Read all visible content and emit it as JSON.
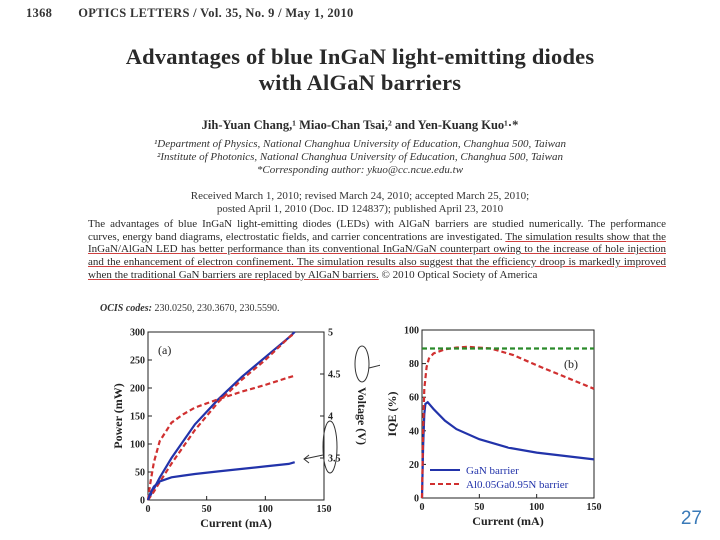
{
  "header": {
    "page_number": "1368",
    "journal": "OPTICS LETTERS / Vol. 35, No. 9 / May 1, 2010"
  },
  "title_line1": "Advantages of blue InGaN light-emitting diodes",
  "title_line2": "with AlGaN barriers",
  "authors": "Jih-Yuan Chang,¹ Miao-Chan Tsai,² and Yen-Kuang Kuo¹·*",
  "affiliations": [
    "¹Department of Physics, National Changhua University of Education, Changhua 500, Taiwan",
    "²Institute of Photonics, National Changhua University of Education, Changhua 500, Taiwan",
    "*Corresponding author: ykuo@cc.ncue.edu.tw"
  ],
  "dates_line1": "Received March 1, 2010; revised March 24, 2010; accepted March 25, 2010;",
  "dates_line2": "posted April 1, 2010 (Doc. ID 124837); published April 23, 2010",
  "abstract_part1": "The advantages of blue InGaN light-emitting diodes (LEDs) with AlGaN barriers are studied numerically. The performance curves, energy band diagrams, electrostatic fields, and carrier concentrations are investigated. ",
  "abstract_part2": "The simulation results show that the InGaN/AlGaN LED has better performance than its conventional InGaN/GaN counterpart owing to the increase of hole injection and the enhancement of electron confinement. The simulation results also suggest that the efficiency droop is markedly improved when the traditional GaN barriers are replaced by AlGaN barriers.",
  "abstract_part3": " © 2010 Optical Society of America",
  "ocis_label": "OCIS codes:",
  "ocis_values": "230.0250, 230.3670, 230.5590.",
  "slide_number": "27",
  "chart_data": [
    {
      "type": "line",
      "panel_label": "(a)",
      "xlabel": "Current (mA)",
      "ylabel": "Power (mW)",
      "y2label": "Voltage (V)",
      "xlim": [
        0,
        150
      ],
      "ylim": [
        0,
        300
      ],
      "y2lim": [
        3,
        5
      ],
      "xticks": [
        "0",
        "50",
        "100",
        "150"
      ],
      "yticks": [
        "0",
        "50",
        "100",
        "150",
        "200",
        "250",
        "300"
      ],
      "y2ticks": [
        "3.5",
        "4",
        "4.5",
        "5"
      ],
      "series": [
        {
          "style": "solid",
          "color": "#2233aa",
          "axis": "left",
          "x": [
            0,
            5,
            10,
            20,
            40,
            60,
            80,
            100,
            120,
            125
          ],
          "y": [
            0,
            20,
            40,
            75,
            135,
            180,
            220,
            255,
            290,
            300
          ]
        },
        {
          "style": "dashed",
          "color": "#d03030",
          "axis": "left",
          "x": [
            0,
            5,
            10,
            20,
            40,
            60,
            80,
            100,
            120,
            125
          ],
          "y": [
            0,
            15,
            32,
            65,
            125,
            175,
            215,
            250,
            290,
            298
          ]
        },
        {
          "style": "dashed",
          "color": "#d03030",
          "axis": "right",
          "x": [
            0,
            2,
            5,
            10,
            20,
            30,
            40,
            60,
            80,
            100,
            120,
            125
          ],
          "y": [
            3.0,
            3.2,
            3.45,
            3.7,
            3.92,
            4.02,
            4.1,
            4.2,
            4.29,
            4.37,
            4.46,
            4.48
          ]
        },
        {
          "style": "solid",
          "color": "#2233aa",
          "axis": "right",
          "x": [
            0,
            2,
            5,
            10,
            20,
            30,
            40,
            60,
            80,
            100,
            120,
            125
          ],
          "y": [
            3.0,
            3.08,
            3.16,
            3.22,
            3.27,
            3.29,
            3.31,
            3.34,
            3.37,
            3.4,
            3.43,
            3.45
          ]
        }
      ]
    },
    {
      "type": "line",
      "panel_label": "(b)",
      "xlabel": "Current (mA)",
      "ylabel": "IQE (%)",
      "xlim": [
        0,
        150
      ],
      "ylim": [
        0,
        100
      ],
      "xticks": [
        "0",
        "50",
        "100",
        "150"
      ],
      "yticks": [
        "0",
        "20",
        "40",
        "60",
        "80",
        "100"
      ],
      "legend_position": "bottom-right",
      "legend": [
        "GaN barrier",
        "Al0.05Ga0.95N barrier"
      ],
      "series": [
        {
          "name": "GaN barrier",
          "style": "solid",
          "color": "#2233aa",
          "x": [
            0,
            1,
            2,
            3,
            5,
            10,
            20,
            30,
            50,
            75,
            100,
            125,
            150
          ],
          "y": [
            0,
            30,
            50,
            56,
            57,
            53,
            46,
            41,
            35,
            30,
            27,
            25,
            23
          ]
        },
        {
          "name": "Al0.05Ga0.95N barrier",
          "style": "dashed",
          "color": "#d03030",
          "x": [
            0,
            1,
            2,
            4,
            6,
            10,
            20,
            30,
            40,
            60,
            80,
            100,
            125,
            150
          ],
          "y": [
            0,
            40,
            65,
            78,
            83,
            86,
            88.5,
            89.5,
            90,
            89,
            85,
            79,
            72,
            65
          ]
        },
        {
          "style": "dashed",
          "color": "#2a8a2a",
          "x": [
            0,
            150
          ],
          "y": [
            89,
            89
          ]
        }
      ]
    }
  ]
}
